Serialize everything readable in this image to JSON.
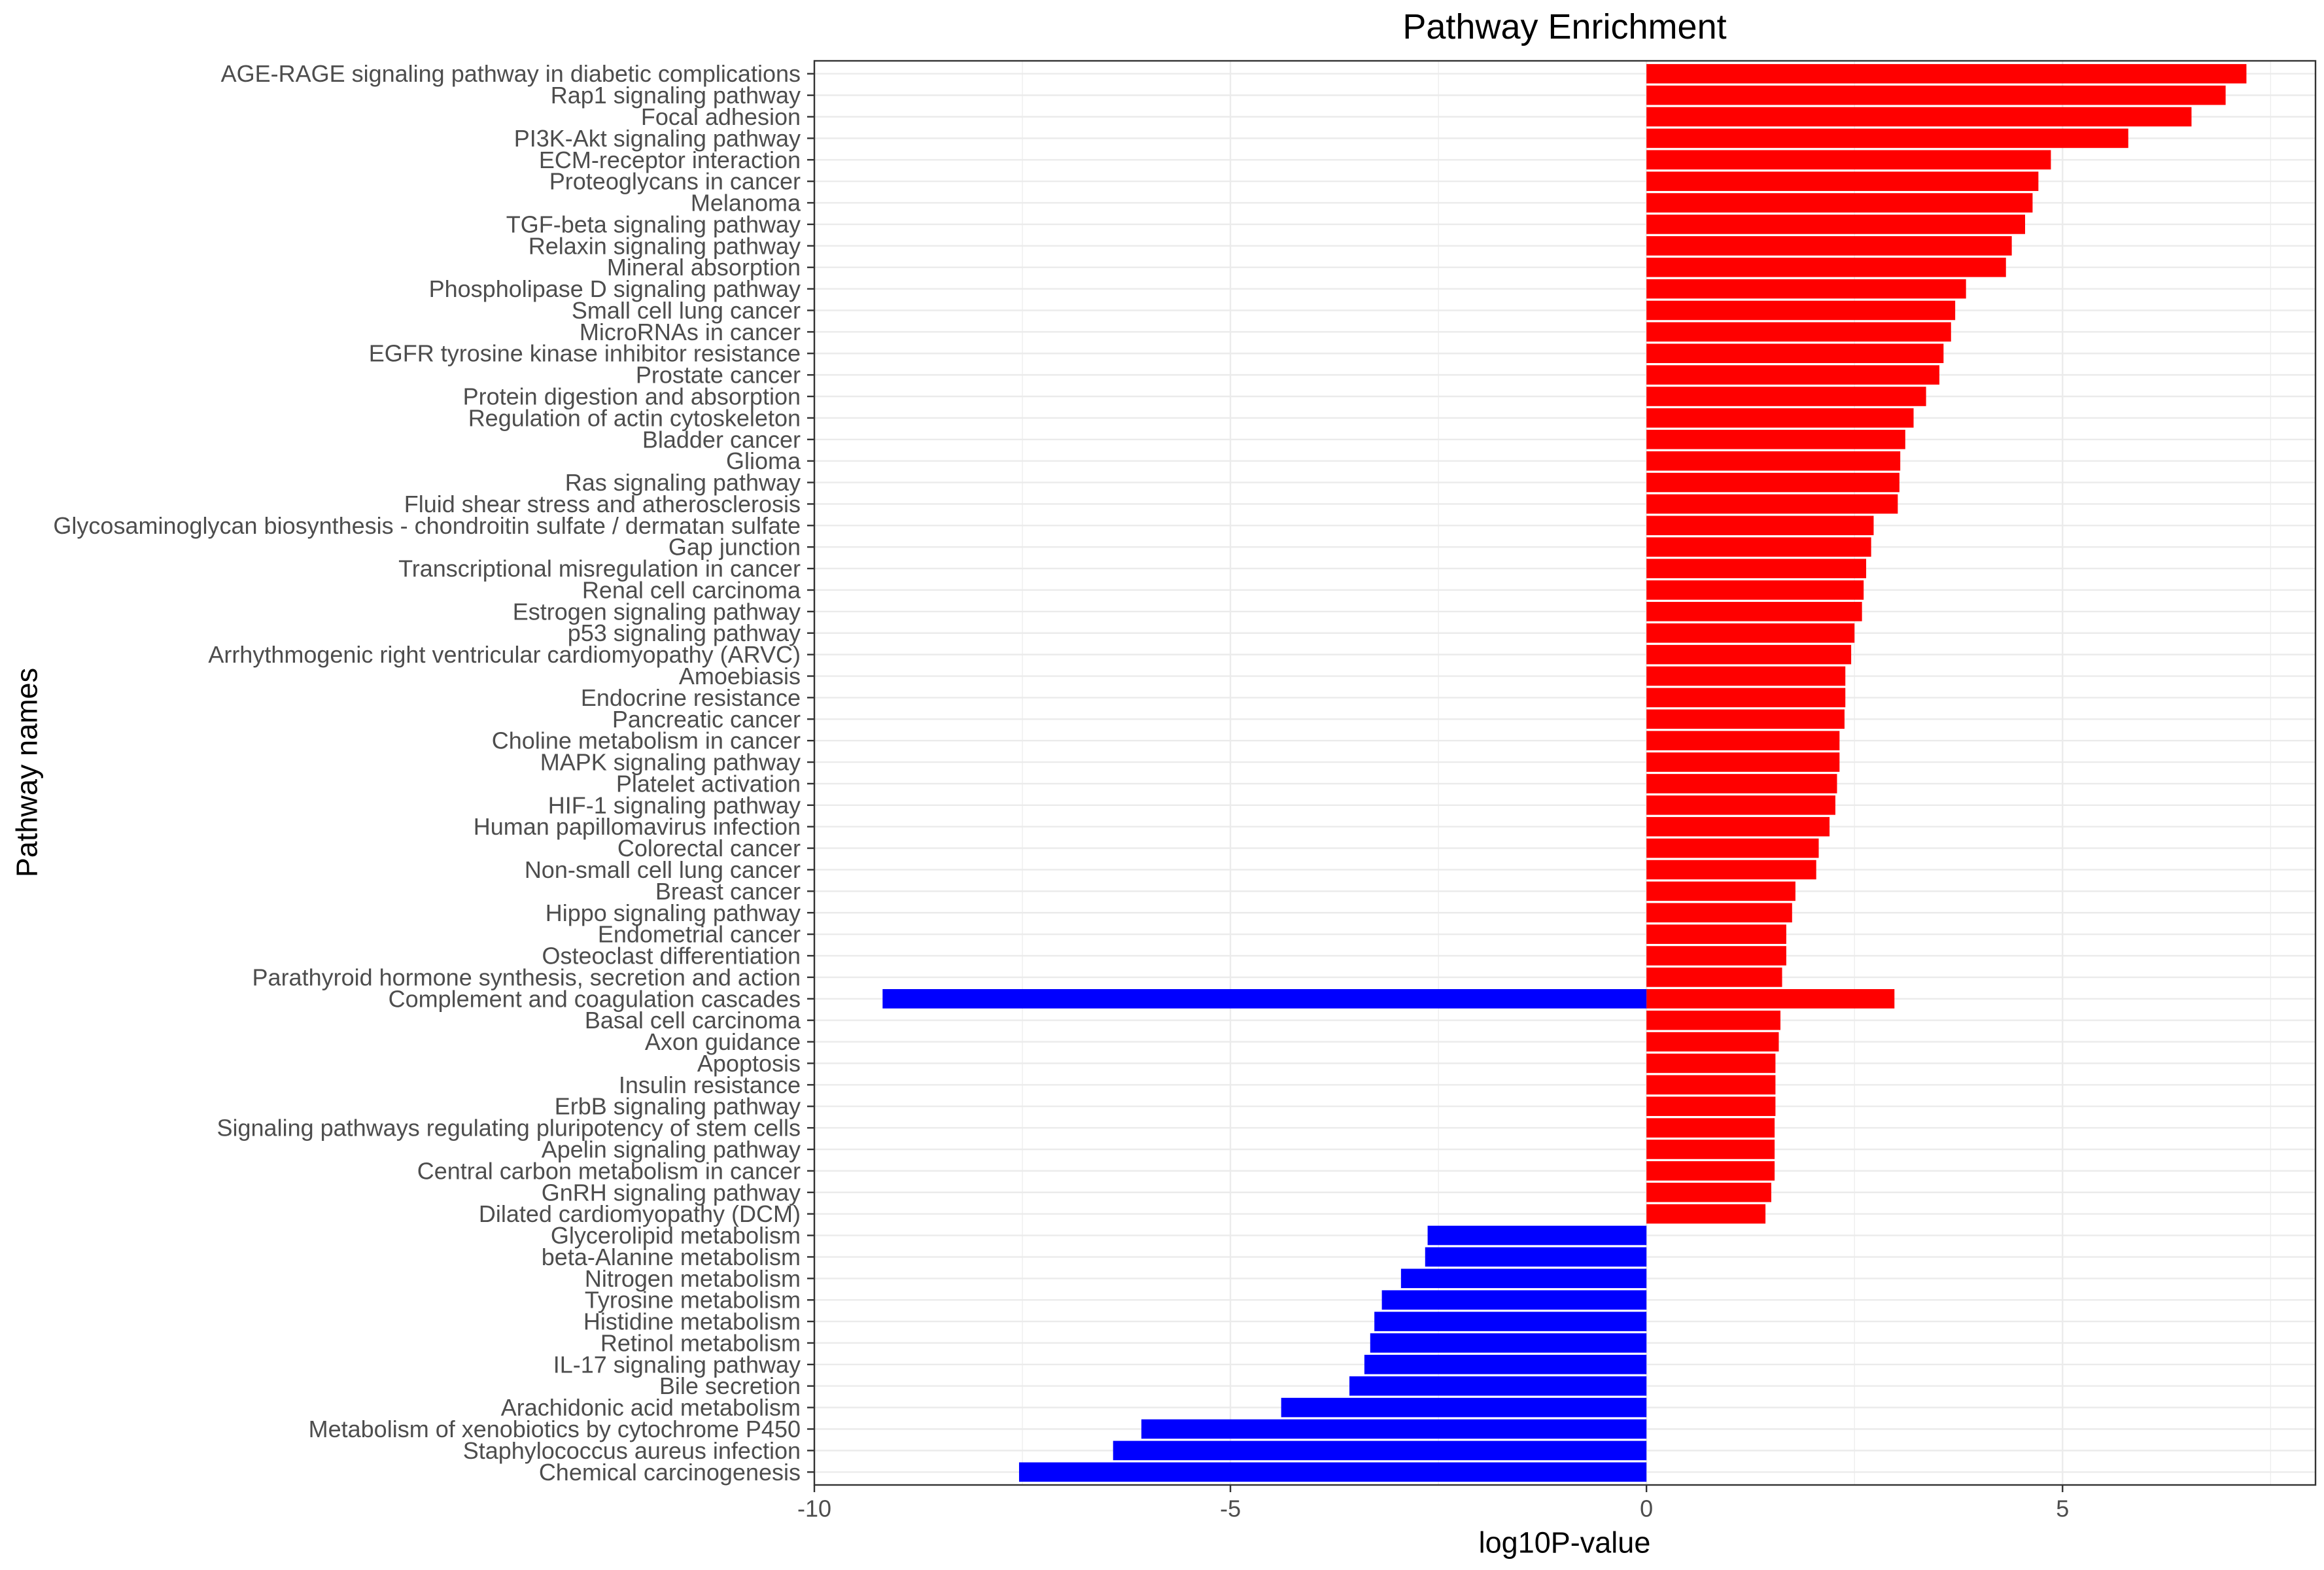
{
  "chart_data": {
    "type": "bar",
    "orientation": "horizontal",
    "title": "Pathway Enrichment",
    "xlabel": "log10P-value",
    "ylabel": "Pathway names",
    "xlim": [
      -10,
      8.04
    ],
    "x_ticks": [
      -10,
      -5,
      0,
      5
    ],
    "x_tick_labels": [
      "-10",
      "-5",
      "0",
      "5"
    ],
    "grid": true,
    "legend": "none",
    "categories": [
      "AGE-RAGE signaling pathway in diabetic complications",
      "Rap1 signaling pathway",
      "Focal adhesion",
      "PI3K-Akt signaling pathway",
      "ECM-receptor interaction",
      "Proteoglycans in cancer",
      "Melanoma",
      "TGF-beta signaling pathway",
      "Relaxin signaling pathway",
      "Mineral absorption",
      "Phospholipase D signaling pathway",
      "Small cell lung cancer",
      "MicroRNAs in cancer",
      "EGFR tyrosine kinase inhibitor resistance",
      "Prostate cancer",
      "Protein digestion and absorption",
      "Regulation of actin cytoskeleton",
      "Bladder cancer",
      "Glioma",
      "Ras signaling pathway",
      "Fluid shear stress and atherosclerosis",
      "Glycosaminoglycan biosynthesis - chondroitin sulfate / dermatan sulfate",
      "Gap junction",
      "Transcriptional misregulation in cancer",
      "Renal cell carcinoma",
      "Estrogen signaling pathway",
      "p53 signaling pathway",
      "Arrhythmogenic right ventricular cardiomyopathy (ARVC)",
      "Amoebiasis",
      "Endocrine resistance",
      "Pancreatic cancer",
      "Choline metabolism in cancer",
      "MAPK signaling pathway",
      "Platelet activation",
      "HIF-1 signaling pathway",
      "Human papillomavirus infection",
      "Colorectal cancer",
      "Non-small cell lung cancer",
      "Breast cancer",
      "Hippo signaling pathway",
      "Endometrial cancer",
      "Osteoclast differentiation",
      "Parathyroid hormone synthesis, secretion and action",
      "Complement and coagulation cascades",
      "Basal cell carcinoma",
      "Axon guidance",
      "Apoptosis",
      "Insulin resistance",
      "ErbB signaling pathway",
      "Signaling pathways regulating pluripotency of stem cells",
      "Apelin signaling pathway",
      "Central carbon metabolism in cancer",
      "GnRH signaling pathway",
      "Dilated cardiomyopathy (DCM)",
      "Glycerolipid metabolism",
      "beta-Alanine metabolism",
      "Nitrogen metabolism",
      "Tyrosine metabolism",
      "Histidine metabolism",
      "Retinol metabolism",
      "IL-17 signaling pathway",
      "Bile secretion",
      "Arachidonic acid metabolism",
      "Metabolism of xenobiotics by cytochrome P450",
      "Staphylococcus aureus infection",
      "Chemical carcinogenesis"
    ],
    "series": [
      {
        "color": "#FF0000",
        "values": [
          7.21,
          6.96,
          6.55,
          5.79,
          4.86,
          4.71,
          4.64,
          4.55,
          4.39,
          4.32,
          3.84,
          3.71,
          3.66,
          3.57,
          3.52,
          3.36,
          3.21,
          3.11,
          3.05,
          3.04,
          3.02,
          2.73,
          2.7,
          2.64,
          2.61,
          2.59,
          2.5,
          2.46,
          2.39,
          2.39,
          2.38,
          2.32,
          2.32,
          2.29,
          2.27,
          2.2,
          2.07,
          2.04,
          1.79,
          1.75,
          1.68,
          1.68,
          1.63,
          2.98,
          1.61,
          1.59,
          1.55,
          1.55,
          1.55,
          1.54,
          1.54,
          1.54,
          1.5,
          1.43,
          null,
          null,
          null,
          null,
          null,
          null,
          null,
          null,
          null,
          null,
          null,
          null
        ]
      },
      {
        "color": "#0000FF",
        "values": [
          null,
          null,
          null,
          null,
          null,
          null,
          null,
          null,
          null,
          null,
          null,
          null,
          null,
          null,
          null,
          null,
          null,
          null,
          null,
          null,
          null,
          null,
          null,
          null,
          null,
          null,
          null,
          null,
          null,
          null,
          null,
          null,
          null,
          null,
          null,
          null,
          null,
          null,
          null,
          null,
          null,
          null,
          null,
          -9.18,
          null,
          null,
          null,
          null,
          null,
          null,
          null,
          null,
          null,
          null,
          -2.63,
          -2.66,
          -2.95,
          -3.18,
          -3.27,
          -3.32,
          -3.39,
          -3.57,
          -4.39,
          -6.07,
          -6.41,
          -7.54
        ]
      }
    ]
  }
}
